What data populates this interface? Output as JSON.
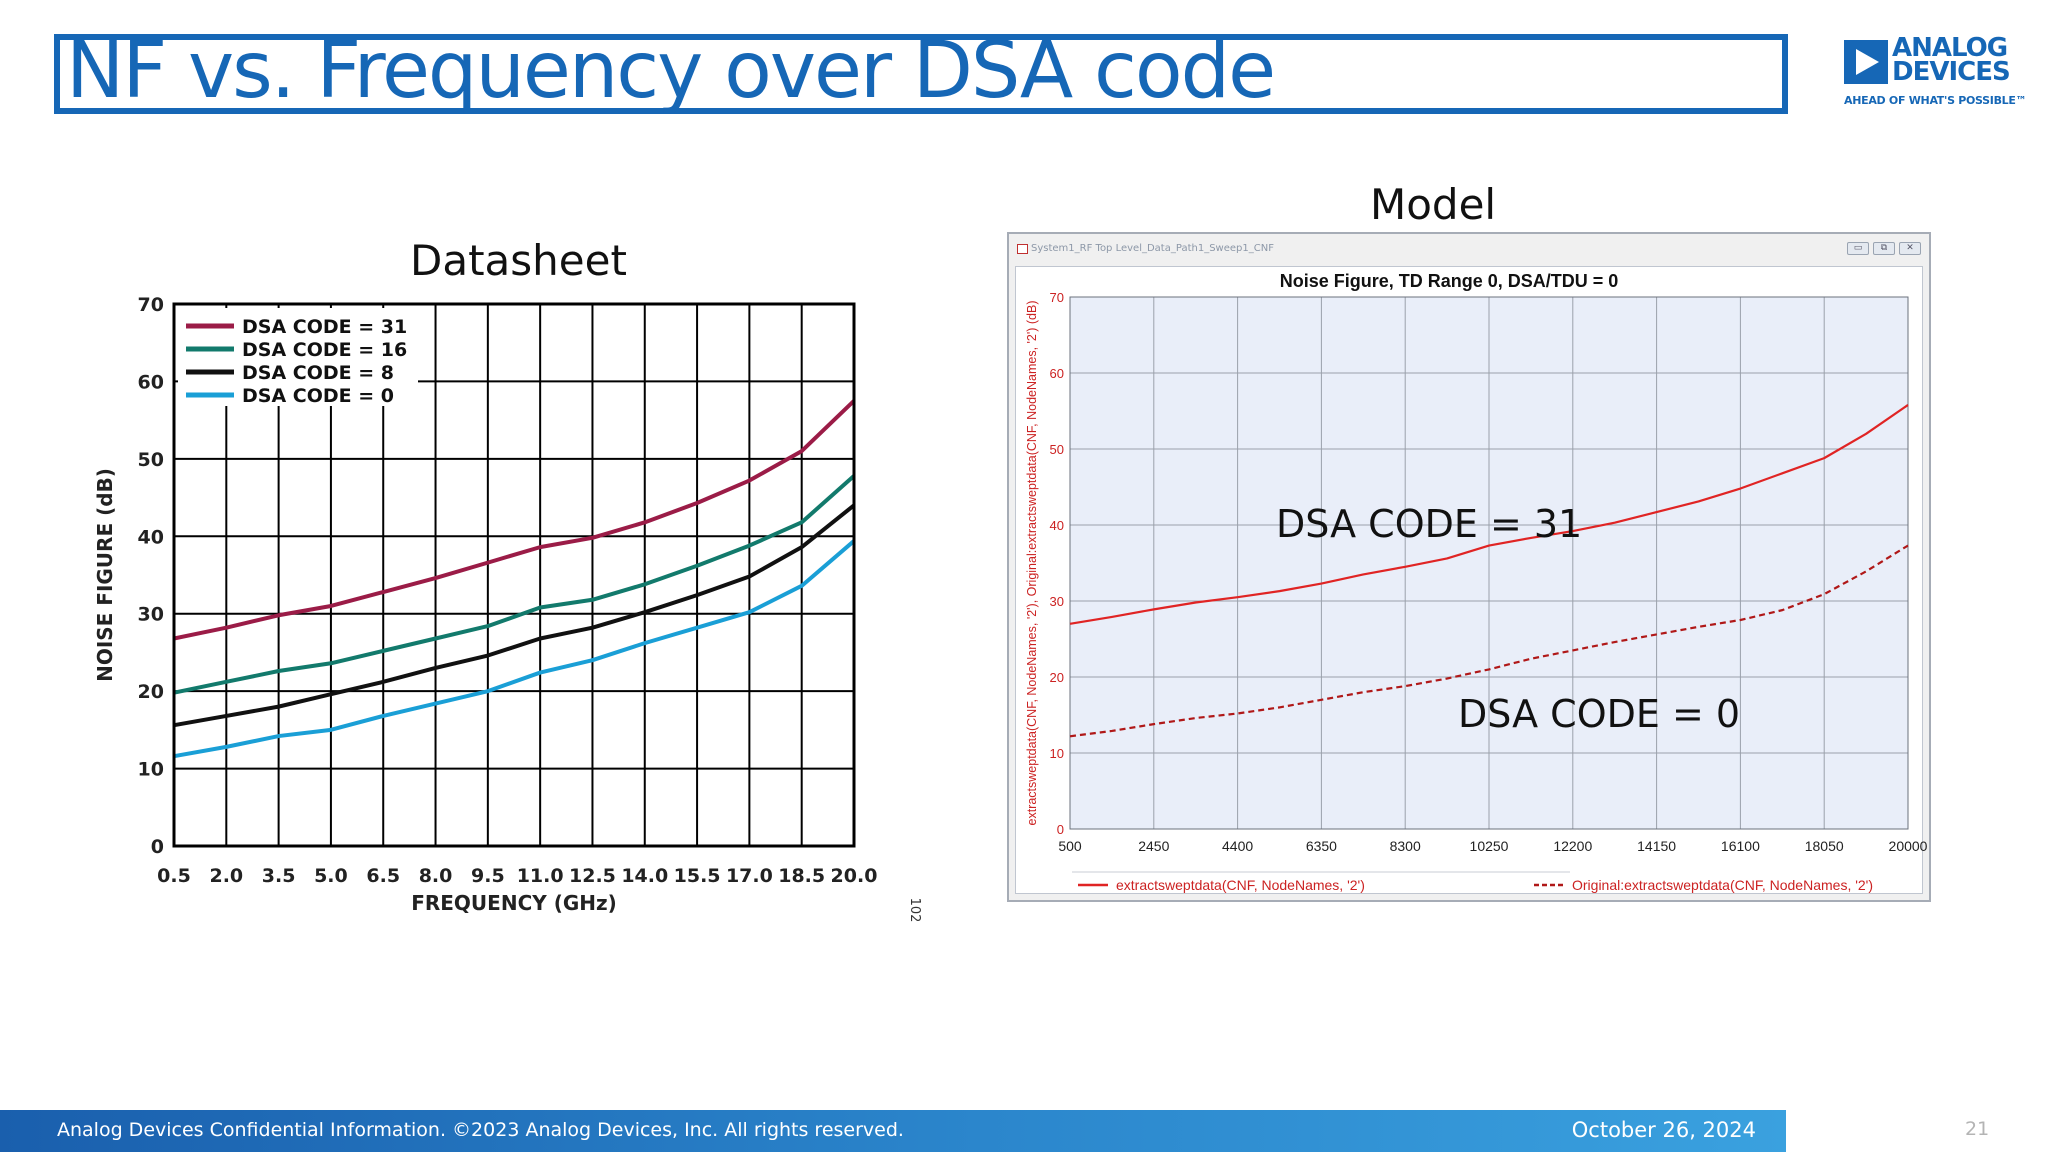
{
  "slide": {
    "title": "NF vs. Frequency over DSA code",
    "footer_text": "Analog Devices Confidential Information. ©2023 Analog Devices, Inc. All rights reserved.",
    "date": "October 26, 2024",
    "page_number": "21"
  },
  "logo": {
    "line1": "ANALOG",
    "line2": "DEVICES",
    "tagline": "AHEAD OF WHAT'S POSSIBLE™",
    "color": "#1667b6"
  },
  "headings": {
    "left": "Datasheet",
    "right": "Model"
  },
  "window": {
    "title": "System1_RF Top Level_Data_Path1_Sweep1_CNF",
    "buttons": [
      "▭",
      "⧉",
      "✕"
    ]
  },
  "chart_data": [
    {
      "type": "line",
      "xlabel": "FREQUENCY (GHz)",
      "ylabel": "NOISE FIGURE (dB)",
      "xlim": [
        0.5,
        20.0
      ],
      "ylim": [
        0,
        70
      ],
      "x_ticks": [
        "0.5",
        "2.0",
        "3.5",
        "5.0",
        "6.5",
        "8.0",
        "9.5",
        "11.0",
        "12.5",
        "14.0",
        "15.5",
        "17.0",
        "18.5",
        "20.0"
      ],
      "y_ticks": [
        "0",
        "10",
        "20",
        "30",
        "40",
        "50",
        "60",
        "70"
      ],
      "grid": true,
      "legend_position": "top-left",
      "side_label": "102",
      "x": [
        0.5,
        2.0,
        3.5,
        5.0,
        6.5,
        8.0,
        9.5,
        11.0,
        12.5,
        14.0,
        15.5,
        17.0,
        18.5,
        20.0
      ],
      "series": [
        {
          "name": "DSA CODE = 31",
          "color": "#9b1c47",
          "values": [
            26.8,
            28.2,
            29.8,
            31.0,
            32.8,
            34.6,
            36.6,
            38.6,
            39.8,
            41.8,
            44.3,
            47.2,
            51.0,
            57.5
          ]
        },
        {
          "name": "DSA CODE = 16",
          "color": "#127a6c",
          "values": [
            19.8,
            21.2,
            22.6,
            23.6,
            25.2,
            26.8,
            28.4,
            30.8,
            31.8,
            33.8,
            36.2,
            38.8,
            41.8,
            47.8
          ]
        },
        {
          "name": "DSA CODE = 8",
          "color": "#111111",
          "values": [
            15.6,
            16.8,
            18.0,
            19.6,
            21.2,
            23.0,
            24.6,
            26.8,
            28.2,
            30.2,
            32.4,
            34.8,
            38.6,
            44.0
          ]
        },
        {
          "name": "DSA CODE = 0",
          "color": "#1a9fd6",
          "values": [
            11.6,
            12.8,
            14.2,
            15.0,
            16.8,
            18.4,
            20.0,
            22.4,
            24.0,
            26.2,
            28.2,
            30.2,
            33.6,
            39.4
          ]
        }
      ]
    },
    {
      "type": "line",
      "title": "Noise Figure, TD Range 0, DSA/TDU = 0",
      "ylabel": "extractsweptdata(CNF, NodeNames, '2'), Original:extractsweptdata(CNF, NodeNames, '2') (dB)",
      "xlim": [
        500,
        20000
      ],
      "ylim": [
        0,
        70
      ],
      "x_ticks": [
        "500",
        "2450",
        "4400",
        "6350",
        "8300",
        "10250",
        "12200",
        "14150",
        "16100",
        "18050",
        "20000"
      ],
      "y_ticks": [
        "0",
        "10",
        "20",
        "30",
        "40",
        "50",
        "60",
        "70"
      ],
      "grid": true,
      "legend_position": "bottom",
      "annotations": [
        "DSA CODE = 31",
        "DSA CODE = 0"
      ],
      "x": [
        500,
        1475,
        2450,
        3425,
        4400,
        5375,
        6350,
        7325,
        8300,
        9275,
        10250,
        11225,
        12200,
        13175,
        14150,
        15125,
        16100,
        17075,
        18050,
        19025,
        20000
      ],
      "series": [
        {
          "name": "extractsweptdata(CNF, NodeNames, '2')",
          "color": "#e02424",
          "dash": "solid",
          "values": [
            27.0,
            27.9,
            28.9,
            29.8,
            30.5,
            31.3,
            32.3,
            33.5,
            34.5,
            35.6,
            37.3,
            38.3,
            39.2,
            40.3,
            41.7,
            43.1,
            44.8,
            46.8,
            48.8,
            52.0,
            55.8
          ]
        },
        {
          "name": "Original:extractsweptdata(CNF, NodeNames, '2')",
          "color": "#b01818",
          "dash": "dashed",
          "values": [
            12.2,
            12.9,
            13.8,
            14.6,
            15.2,
            16.0,
            17.0,
            18.0,
            18.8,
            19.8,
            21.0,
            22.4,
            23.5,
            24.6,
            25.6,
            26.6,
            27.5,
            28.8,
            30.9,
            33.9,
            37.3
          ]
        }
      ]
    }
  ]
}
